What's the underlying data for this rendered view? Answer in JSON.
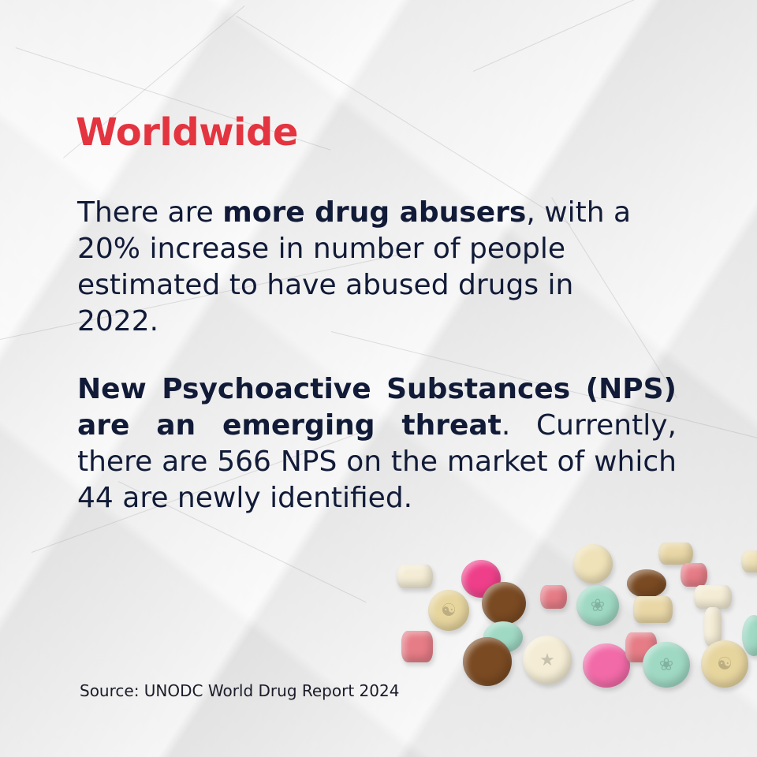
{
  "title": "Worldwide",
  "paragraph1": {
    "prefix": "There are ",
    "bold": "more drug abusers",
    "suffix": ", with a 20% increase in number of people estimated to have abused drugs in 2022."
  },
  "paragraph2": {
    "bold": "New Psychoactive Substances (NPS) are an emerging threat",
    "suffix": ". Currently, there are 566 NPS on the market of which 44 are newly identified."
  },
  "source": "Source: UNODC World Drug Report 2024",
  "colors": {
    "title": "#e3343f",
    "body_text": "#111b38",
    "background": "#ececec"
  },
  "pill_colors": [
    "#f4ecd4",
    "#ef3f8a",
    "#7a4a22",
    "#e67c86",
    "#9fd9c4",
    "#efe2b8",
    "#e9d7a6",
    "#f26aa8"
  ]
}
